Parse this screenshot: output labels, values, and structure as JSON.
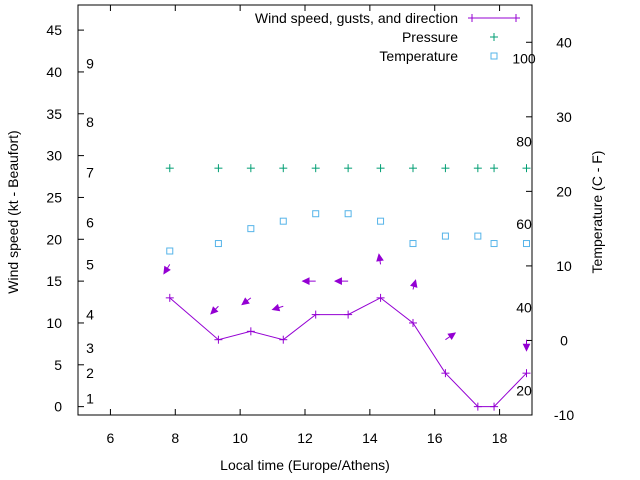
{
  "chart_data": {
    "type": "line",
    "xlabel": "Local time (Europe/Athens)",
    "ylabel_left": "Wind speed (kt - Beaufort)",
    "ylabel_right": "Temperature (C - F)",
    "xlim": [
      5,
      19
    ],
    "ylim_left": [
      -1,
      48
    ],
    "ylim_right": [
      -10,
      45
    ],
    "xticks": [
      "6",
      "8",
      "10",
      "12",
      "14",
      "16",
      "18"
    ],
    "yticks_left": [
      "0",
      "5",
      "10",
      "15",
      "20",
      "25",
      "30",
      "35",
      "40",
      "45"
    ],
    "yticks_right": [
      "-10",
      "0",
      "10",
      "20",
      "30",
      "40"
    ],
    "beaufort_labels": [
      {
        "value": 1,
        "label": "1"
      },
      {
        "value": 4,
        "label": "2"
      },
      {
        "value": 7,
        "label": "3"
      },
      {
        "value": 11,
        "label": "4"
      },
      {
        "value": 17,
        "label": "5"
      },
      {
        "value": 22,
        "label": "6"
      },
      {
        "value": 28,
        "label": "7"
      },
      {
        "value": 34,
        "label": "8"
      },
      {
        "value": 41,
        "label": "9"
      }
    ],
    "fahrenheit_labels": [
      {
        "celsius": -6.7,
        "label": "20"
      },
      {
        "celsius": 4.4,
        "label": "40"
      },
      {
        "celsius": 15.6,
        "label": "60"
      },
      {
        "celsius": 26.7,
        "label": "80"
      },
      {
        "celsius": 37.8,
        "label": "100"
      }
    ],
    "legend_position": "top-right",
    "series": [
      {
        "name": "Wind speed, gusts, and direction",
        "color": "#9400d3",
        "marker": "+",
        "x": [
          7.83,
          9.33,
          10.33,
          11.33,
          12.33,
          13.33,
          14.33,
          15.33,
          16.33,
          17.33,
          17.83,
          18.83
        ],
        "y": [
          13,
          8,
          9,
          8,
          11,
          11,
          13,
          10,
          4,
          0,
          0,
          4
        ],
        "direction_arrows": [
          {
            "x": 7.83,
            "y": 17,
            "dx": -0.18,
            "dy": -1.1
          },
          {
            "x": 9.33,
            "y": 12,
            "dx": -0.23,
            "dy": -0.9
          },
          {
            "x": 10.33,
            "y": 13,
            "dx": -0.27,
            "dy": -0.8
          },
          {
            "x": 11.33,
            "y": 12,
            "dx": -0.33,
            "dy": -0.4
          },
          {
            "x": 12.33,
            "y": 15,
            "dx": -0.4,
            "dy": 0
          },
          {
            "x": 13.33,
            "y": 15,
            "dx": -0.4,
            "dy": 0
          },
          {
            "x": 14.33,
            "y": 17,
            "dx": -0.05,
            "dy": 1.2
          },
          {
            "x": 15.33,
            "y": 14,
            "dx": 0.08,
            "dy": 1.1
          },
          {
            "x": 16.33,
            "y": 8,
            "dx": 0.3,
            "dy": 0.8
          },
          {
            "x": 18.83,
            "y": 8,
            "dx": 0,
            "dy": -1.3
          }
        ]
      },
      {
        "name": "Pressure",
        "color": "#009e73",
        "marker": "+",
        "axis": "left",
        "x": [
          7.83,
          9.33,
          10.33,
          11.33,
          12.33,
          13.33,
          14.33,
          15.33,
          16.33,
          17.33,
          17.83,
          18.83
        ],
        "y": [
          28.5,
          28.5,
          28.5,
          28.5,
          28.5,
          28.5,
          28.5,
          28.5,
          28.5,
          28.5,
          28.5,
          28.5
        ]
      },
      {
        "name": "Temperature",
        "color": "#56b4e9",
        "marker": "square",
        "axis": "right",
        "x": [
          7.83,
          9.33,
          10.33,
          11.33,
          12.33,
          13.33,
          14.33,
          15.33,
          16.33,
          17.33,
          17.83,
          18.83
        ],
        "y": [
          12,
          13,
          15,
          16,
          17,
          17,
          16,
          13,
          14,
          14,
          13,
          13
        ]
      }
    ]
  }
}
